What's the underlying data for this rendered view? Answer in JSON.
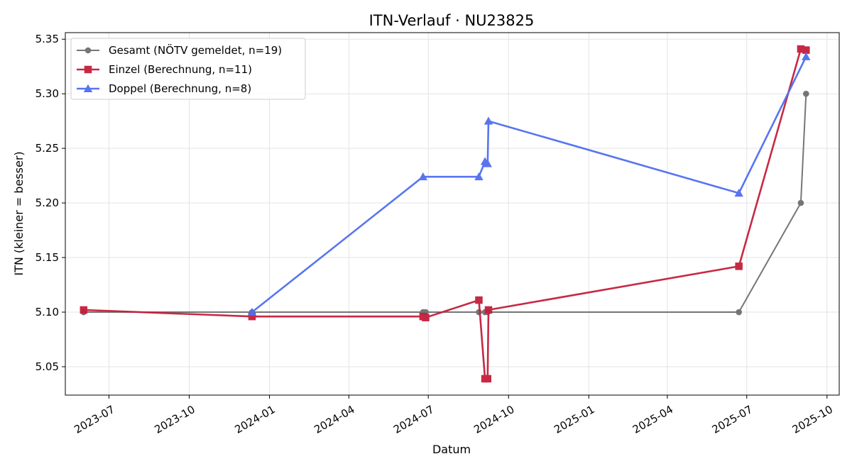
{
  "chart_data": {
    "type": "line",
    "title": "ITN-Verlauf · NU23825",
    "xlabel": "Datum",
    "ylabel": "ITN  (kleiner = besser)",
    "x_axis_type": "date",
    "xlim": [
      "2023-05-12",
      "2025-10-15"
    ],
    "ylim": [
      5.024,
      5.356
    ],
    "x_ticks": [
      {
        "date": "2023-07-01",
        "label": "2023-07"
      },
      {
        "date": "2023-10-01",
        "label": "2023-10"
      },
      {
        "date": "2024-01-01",
        "label": "2024-01"
      },
      {
        "date": "2024-04-01",
        "label": "2024-04"
      },
      {
        "date": "2024-07-01",
        "label": "2024-07"
      },
      {
        "date": "2024-10-01",
        "label": "2024-10"
      },
      {
        "date": "2025-01-01",
        "label": "2025-01"
      },
      {
        "date": "2025-04-01",
        "label": "2025-04"
      },
      {
        "date": "2025-07-01",
        "label": "2025-07"
      },
      {
        "date": "2025-10-01",
        "label": "2025-10"
      }
    ],
    "y_ticks": [
      5.05,
      5.1,
      5.15,
      5.2,
      5.25,
      5.3,
      5.35
    ],
    "y_tick_labels": [
      "5.05",
      "5.10",
      "5.15",
      "5.20",
      "5.25",
      "5.30",
      "5.35"
    ],
    "grid": true,
    "legend_position": "top-left",
    "series": [
      {
        "name": "Gesamt (NÖTV gemeldet, n=19)",
        "color": "#555555",
        "marker": "circle",
        "points": [
          {
            "x": "2023-06-02",
            "y": 5.1
          },
          {
            "x": "2023-12-12",
            "y": 5.1
          },
          {
            "x": "2024-06-25",
            "y": 5.1
          },
          {
            "x": "2024-06-28",
            "y": 5.1
          },
          {
            "x": "2024-08-28",
            "y": 5.1
          },
          {
            "x": "2024-09-04",
            "y": 5.1
          },
          {
            "x": "2024-09-07",
            "y": 5.1
          },
          {
            "x": "2025-06-22",
            "y": 5.1
          },
          {
            "x": "2025-09-01",
            "y": 5.2
          },
          {
            "x": "2025-09-07",
            "y": 5.3
          }
        ]
      },
      {
        "name": "Einzel (Berechnung, n=11)",
        "color": "#c41e3a",
        "marker": "square",
        "points": [
          {
            "x": "2023-06-02",
            "y": 5.102
          },
          {
            "x": "2023-12-12",
            "y": 5.096
          },
          {
            "x": "2024-06-25",
            "y": 5.096
          },
          {
            "x": "2024-06-28",
            "y": 5.095
          },
          {
            "x": "2024-08-28",
            "y": 5.111
          },
          {
            "x": "2024-09-04",
            "y": 5.039
          },
          {
            "x": "2024-09-07",
            "y": 5.039
          },
          {
            "x": "2024-09-08",
            "y": 5.102
          },
          {
            "x": "2025-06-22",
            "y": 5.142
          },
          {
            "x": "2025-09-01",
            "y": 5.341
          },
          {
            "x": "2025-09-07",
            "y": 5.34
          }
        ]
      },
      {
        "name": "Doppel (Berechnung, n=8)",
        "color": "#4f6ef0",
        "marker": "triangle",
        "points": [
          {
            "x": "2023-12-12",
            "y": 5.1
          },
          {
            "x": "2024-06-25",
            "y": 5.224
          },
          {
            "x": "2024-08-28",
            "y": 5.224
          },
          {
            "x": "2024-09-04",
            "y": 5.238
          },
          {
            "x": "2024-09-07",
            "y": 5.236
          },
          {
            "x": "2024-09-08",
            "y": 5.275
          },
          {
            "x": "2025-06-22",
            "y": 5.209
          },
          {
            "x": "2025-09-07",
            "y": 5.334
          }
        ]
      }
    ]
  }
}
